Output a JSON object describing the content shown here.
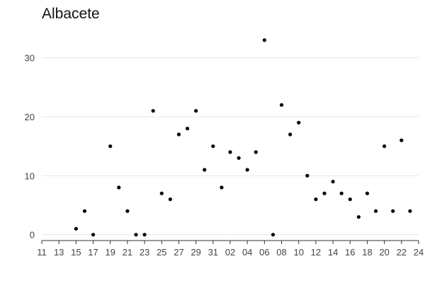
{
  "chart_data": {
    "type": "scatter",
    "title": "Albacete",
    "xlabel": "",
    "ylabel": "",
    "x_tick_labels": [
      "11",
      "13",
      "15",
      "17",
      "19",
      "21",
      "23",
      "25",
      "27",
      "29",
      "31",
      "02",
      "04",
      "06",
      "08",
      "10",
      "12",
      "14",
      "16",
      "18",
      "20",
      "22",
      "24"
    ],
    "y_ticks": [
      0,
      10,
      20,
      30
    ],
    "y_tick_labels": [
      "0",
      "10",
      "20",
      "30"
    ],
    "xlim": [
      "11",
      "24"
    ],
    "ylim": [
      -1,
      35
    ],
    "grid": "horizontal",
    "legend": "none",
    "point_color": "#000000",
    "points": [
      {
        "x": "15",
        "y": 1
      },
      {
        "x": "16",
        "y": 4
      },
      {
        "x": "17",
        "y": 0
      },
      {
        "x": "19",
        "y": 15
      },
      {
        "x": "20",
        "y": 8
      },
      {
        "x": "21",
        "y": 4
      },
      {
        "x": "22",
        "y": 0
      },
      {
        "x": "23",
        "y": 0
      },
      {
        "x": "24",
        "y": 21
      },
      {
        "x": "25",
        "y": 7
      },
      {
        "x": "26",
        "y": 6
      },
      {
        "x": "27",
        "y": 17
      },
      {
        "x": "28",
        "y": 18
      },
      {
        "x": "29",
        "y": 21
      },
      {
        "x": "30",
        "y": 11
      },
      {
        "x": "31",
        "y": 15
      },
      {
        "x": "01",
        "y": 8
      },
      {
        "x": "02",
        "y": 14
      },
      {
        "x": "03",
        "y": 13
      },
      {
        "x": "04",
        "y": 11
      },
      {
        "x": "05",
        "y": 14
      },
      {
        "x": "06",
        "y": 33
      },
      {
        "x": "07",
        "y": 0
      },
      {
        "x": "08",
        "y": 22
      },
      {
        "x": "09",
        "y": 17
      },
      {
        "x": "10",
        "y": 19
      },
      {
        "x": "11",
        "y": 10
      },
      {
        "x": "12",
        "y": 6
      },
      {
        "x": "13",
        "y": 7
      },
      {
        "x": "14",
        "y": 9
      },
      {
        "x": "15",
        "y": 7
      },
      {
        "x": "16",
        "y": 6
      },
      {
        "x": "17",
        "y": 3
      },
      {
        "x": "18",
        "y": 7
      },
      {
        "x": "19",
        "y": 4
      },
      {
        "x": "20",
        "y": 15
      },
      {
        "x": "21",
        "y": 4
      },
      {
        "x": "22",
        "y": 16
      },
      {
        "x": "23",
        "y": 4
      }
    ]
  }
}
